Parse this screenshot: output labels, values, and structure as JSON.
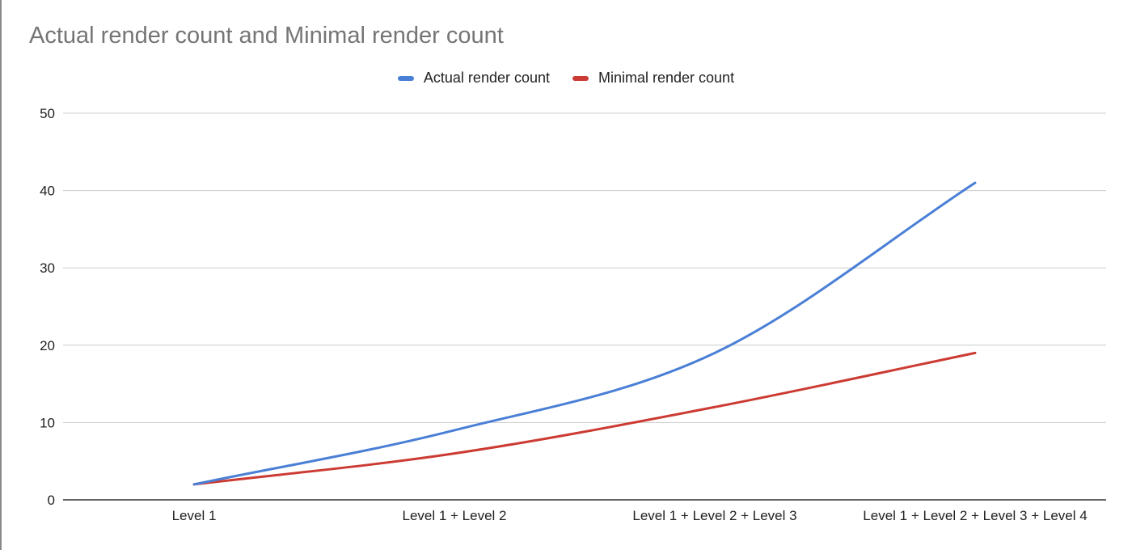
{
  "colors": {
    "actual": "#4a7fd6",
    "minimal": "#cc3b33",
    "grid": "#cccccc",
    "axis": "#333333",
    "title": "#757575"
  },
  "chart_data": {
    "type": "line",
    "title": "Actual render count and Minimal render count",
    "xlabel": "",
    "ylabel": "",
    "categories": [
      "Level 1",
      "Level 1 + Level 2",
      "Level 1 + Level 2 + Level 3",
      "Level 1 + Level 2 + Level 3 + Level 4"
    ],
    "series": [
      {
        "name": "Actual render count",
        "values": [
          2,
          9,
          19,
          41
        ],
        "color": "#4a7fd6"
      },
      {
        "name": "Minimal render count",
        "values": [
          2,
          6,
          12,
          19
        ],
        "color": "#cc3b33"
      }
    ],
    "ylim": [
      0,
      50
    ],
    "yticks": [
      0,
      10,
      20,
      30,
      40,
      50
    ],
    "smooth": true,
    "grid": "horizontal",
    "legend_position": "top-center"
  }
}
